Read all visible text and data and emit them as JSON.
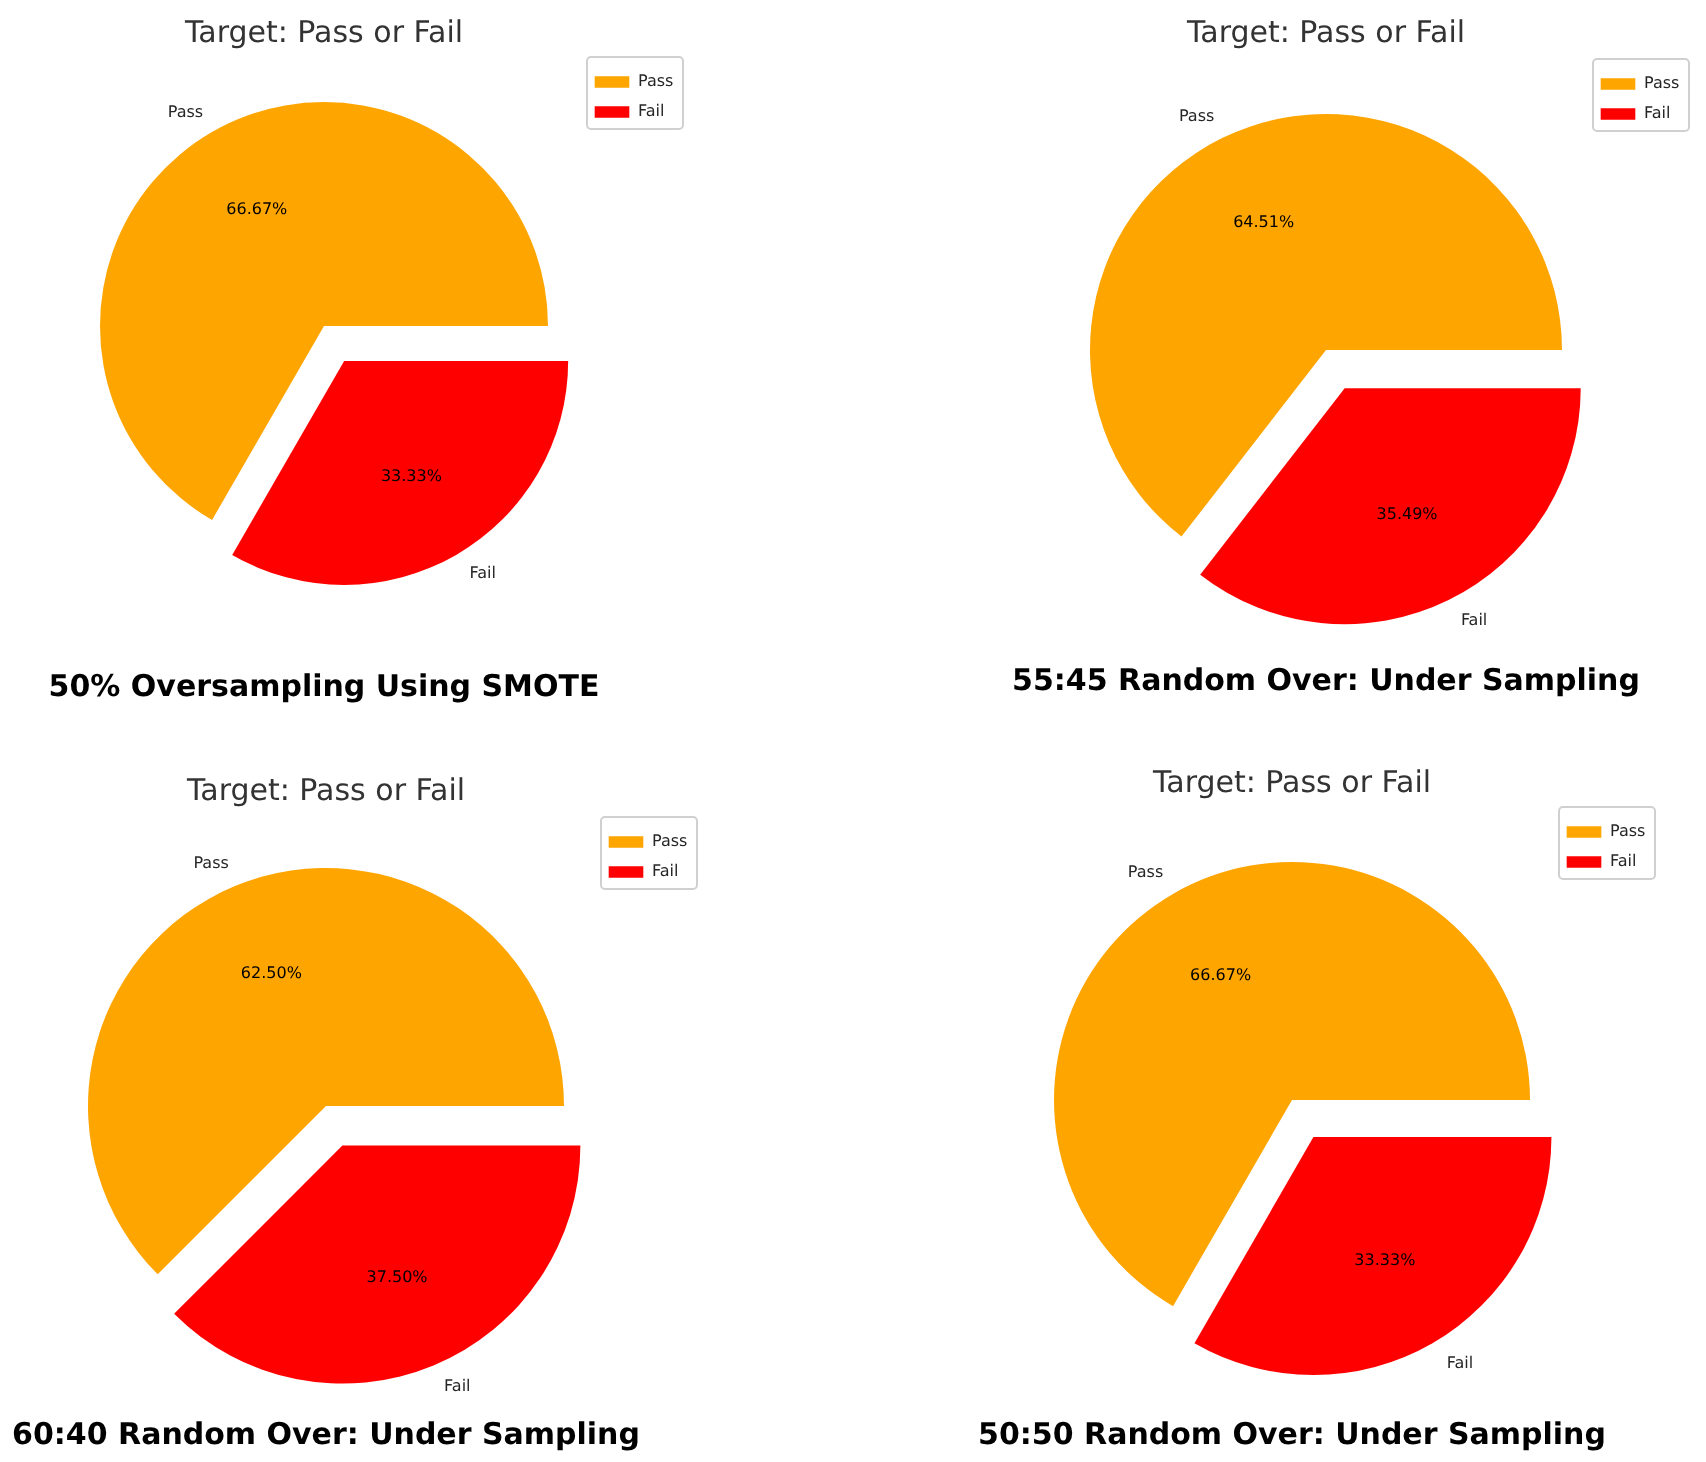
{
  "chart_data": [
    {
      "type": "pie",
      "title": "Target: Pass or Fail",
      "categories": [
        "Pass",
        "Fail"
      ],
      "values": [
        66.67,
        33.33
      ],
      "colors": [
        "#ffa500",
        "#ff0000"
      ],
      "value_labels": [
        "66.67%",
        "33.33%"
      ],
      "legend": "top right",
      "annotations": [
        "50% Oversampling Using SMOTE"
      ]
    },
    {
      "type": "pie",
      "title": "Target: Pass or Fail",
      "categories": [
        "Pass",
        "Fail"
      ],
      "values": [
        64.51,
        35.49
      ],
      "colors": [
        "#ffa500",
        "#ff0000"
      ],
      "value_labels": [
        "64.51%",
        "35.49%"
      ],
      "legend": "top right",
      "annotations": [
        "55:45 Random Over: Under Sampling"
      ]
    },
    {
      "type": "pie",
      "title": "Target: Pass or Fail",
      "categories": [
        "Pass",
        "Fail"
      ],
      "values": [
        62.5,
        37.5
      ],
      "colors": [
        "#ffa500",
        "#ff0000"
      ],
      "value_labels": [
        "62.50%",
        "37.50%"
      ],
      "legend": "top right",
      "annotations": [
        "60:40 Random Over: Under Sampling"
      ]
    },
    {
      "type": "pie",
      "title": "Target: Pass or Fail",
      "categories": [
        "Pass",
        "Fail"
      ],
      "values": [
        66.67,
        33.33
      ],
      "colors": [
        "#ffa500",
        "#ff0000"
      ],
      "value_labels": [
        "66.67%",
        "33.33%"
      ],
      "legend": "top right",
      "annotations": [
        "50:50 Random Over: Under Sampling"
      ]
    }
  ]
}
